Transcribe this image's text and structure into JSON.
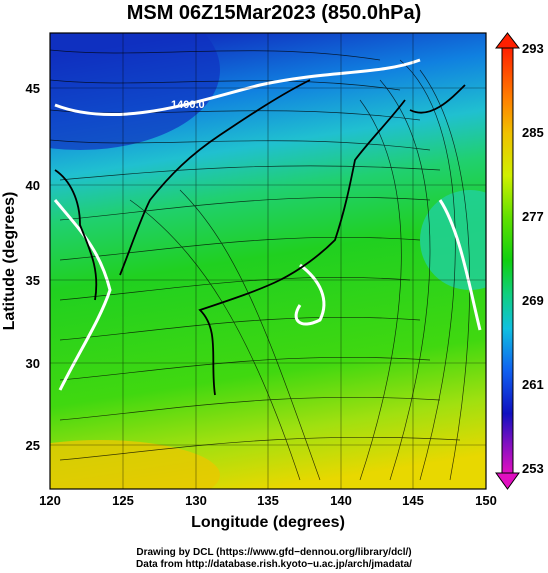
{
  "title": "MSM 06Z15Mar2023 (850.0hPa)",
  "map": {
    "xlabel": "Longitude (degrees)",
    "ylabel": "Latitude  (degrees)",
    "x_ticks": [
      "120",
      "125",
      "130",
      "135",
      "140",
      "145",
      "150"
    ],
    "y_ticks": [
      "45",
      "40",
      "35",
      "30",
      "25"
    ],
    "contour_label": "1400.0",
    "lon_range": [
      120,
      150
    ],
    "lat_range": [
      22.4,
      47.6
    ],
    "field": "temperature (K) with streamlines and geopotential contours",
    "colors": {
      "cold": "#1020c0",
      "cyan": "#20c0e0",
      "green": "#20d020",
      "yellow_green": "#a0e010",
      "yellow": "#f0d000",
      "contour": "#ffffff",
      "coast": "#000000"
    }
  },
  "colorbar": {
    "ticks": [
      "293",
      "285",
      "277",
      "269",
      "261",
      "253"
    ],
    "values": [
      293,
      285,
      277,
      269,
      261,
      253
    ],
    "range": [
      253,
      293
    ]
  },
  "credits": {
    "line1": "Drawing by DCL (https://www.gfd−dennou.org/library/dcl/)",
    "line2": "Data from http://database.rish.kyoto−u.ac.jp/arch/jmadata/"
  }
}
